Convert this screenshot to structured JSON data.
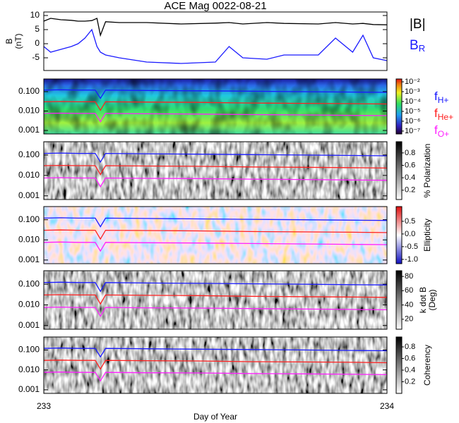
{
  "chart_data": [
    {
      "type": "line",
      "title": "ACE Mag 0022-08-21",
      "ylabel": "B",
      "yunit": "(nT)",
      "xlim": [
        233,
        234
      ],
      "ylim": [
        -9.5,
        11.25
      ],
      "yticks": [
        -5,
        0,
        5,
        10
      ],
      "x": [
        233,
        233.02,
        233.05,
        233.08,
        233.1,
        233.12,
        233.14,
        233.155,
        233.165,
        233.18,
        233.22,
        233.3,
        233.4,
        233.5,
        233.54,
        233.58,
        233.65,
        233.7,
        233.8,
        233.85,
        233.9,
        233.93,
        233.96,
        234
      ],
      "series": [
        {
          "name": "|B|",
          "color": "#000000",
          "values": [
            8,
            9,
            8.5,
            8.3,
            8,
            8,
            8.2,
            9,
            3,
            7.8,
            7.5,
            7.5,
            7,
            7.3,
            7.5,
            7,
            7.5,
            7.2,
            7,
            7.5,
            7,
            7.2,
            6.8,
            6.7
          ]
        },
        {
          "name": "B",
          "subscript": "R",
          "color": "#1a1aff",
          "values": [
            -1,
            -3,
            -2,
            -1,
            0,
            2,
            5,
            -1,
            -3,
            -4,
            -5,
            -6.5,
            -7,
            -6.5,
            -1,
            -5,
            -5.5,
            -4,
            -4,
            2,
            -3,
            3,
            -5,
            -6
          ]
        }
      ]
    },
    {
      "type": "spectrogram",
      "yscale": "log",
      "xlim": [
        233,
        234
      ],
      "ylim": [
        0.00066,
        0.45
      ],
      "yticks": [
        {
          "value": 0.001,
          "label": "0.001"
        },
        {
          "value": 0.01,
          "label": "0.010"
        },
        {
          "value": 0.1,
          "label": "0.100"
        }
      ],
      "colormap": "rainbow",
      "colorbar": {
        "scale": "log",
        "lim": [
          5.1e-08,
          0.0195
        ],
        "ticks": [
          {
            "value": 1e-07,
            "label": "10⁻⁷"
          },
          {
            "value": 1e-06,
            "label": "10⁻⁶"
          },
          {
            "value": 1e-05,
            "label": "10⁻⁵"
          },
          {
            "value": 0.0001,
            "label": "10⁻⁴"
          },
          {
            "value": 0.001,
            "label": "10⁻³"
          },
          {
            "value": 0.01,
            "label": "10⁻²"
          }
        ]
      },
      "x": [
        233,
        233.05,
        233.1,
        233.15,
        233.165,
        233.18,
        233.3,
        233.45,
        233.6,
        233.75,
        233.9,
        234
      ],
      "series": [
        {
          "name": "f",
          "subscript": "H+",
          "color": "#1a1aff",
          "values": [
            0.12,
            0.125,
            0.12,
            0.12,
            0.045,
            0.12,
            0.115,
            0.11,
            0.105,
            0.1,
            0.095,
            0.092
          ]
        },
        {
          "name": "f",
          "subscript": "He+",
          "color": "#ff2020",
          "values": [
            0.03,
            0.031,
            0.03,
            0.03,
            0.011,
            0.03,
            0.029,
            0.028,
            0.026,
            0.025,
            0.024,
            0.023
          ]
        },
        {
          "name": "f",
          "subscript": "O+",
          "color": "#ff20ff",
          "values": [
            0.0075,
            0.0078,
            0.0075,
            0.0075,
            0.0028,
            0.0075,
            0.0072,
            0.007,
            0.0066,
            0.0063,
            0.006,
            0.0058
          ]
        }
      ]
    },
    {
      "type": "spectrogram",
      "yscale": "log",
      "xlim": [
        233,
        234
      ],
      "ylim": [
        0.00066,
        0.45
      ],
      "yticks": [
        {
          "value": 0.001,
          "label": "0.001"
        },
        {
          "value": 0.01,
          "label": "0.010"
        },
        {
          "value": 0.1,
          "label": "0.100"
        }
      ],
      "colormap": "gray",
      "colorbar": {
        "label": "% Polarization",
        "lim": [
          0.05,
          0.98
        ],
        "ticks": [
          0.2,
          0.4,
          0.6,
          0.8
        ]
      },
      "x": [
        233,
        233.05,
        233.1,
        233.15,
        233.165,
        233.18,
        233.3,
        233.45,
        233.6,
        233.75,
        233.9,
        234
      ],
      "series": [
        {
          "color": "#1a1aff",
          "values": [
            0.12,
            0.125,
            0.12,
            0.12,
            0.045,
            0.12,
            0.115,
            0.11,
            0.105,
            0.1,
            0.095,
            0.092
          ]
        },
        {
          "color": "#ff2020",
          "values": [
            0.03,
            0.031,
            0.03,
            0.03,
            0.011,
            0.03,
            0.029,
            0.028,
            0.026,
            0.025,
            0.024,
            0.023
          ]
        },
        {
          "color": "#ff20ff",
          "values": [
            0.0075,
            0.0078,
            0.0075,
            0.0075,
            0.0028,
            0.0075,
            0.0072,
            0.007,
            0.0066,
            0.0063,
            0.006,
            0.0058
          ]
        }
      ]
    },
    {
      "type": "spectrogram",
      "yscale": "log",
      "xlim": [
        233,
        234
      ],
      "ylim": [
        0.00066,
        0.45
      ],
      "yticks": [
        {
          "value": 0.001,
          "label": "0.001"
        },
        {
          "value": 0.01,
          "label": "0.010"
        },
        {
          "value": 0.1,
          "label": "0.100"
        }
      ],
      "colormap": "diverging",
      "colorbar": {
        "label": "Ellipticity",
        "lim": [
          -1.17,
          1.08
        ],
        "ticks": [
          {
            "value": -1,
            "label": "-1.0"
          },
          {
            "value": -0.5,
            "label": "-0.5"
          },
          {
            "value": 0,
            "label": "0.0"
          },
          0.5
        ]
      },
      "x": [
        233,
        233.05,
        233.1,
        233.15,
        233.165,
        233.18,
        233.3,
        233.45,
        233.6,
        233.75,
        233.9,
        234
      ],
      "series": [
        {
          "color": "#1a1aff",
          "values": [
            0.12,
            0.125,
            0.12,
            0.12,
            0.045,
            0.12,
            0.115,
            0.11,
            0.105,
            0.1,
            0.095,
            0.092
          ]
        },
        {
          "color": "#ff2020",
          "values": [
            0.03,
            0.031,
            0.03,
            0.03,
            0.011,
            0.03,
            0.029,
            0.028,
            0.026,
            0.025,
            0.024,
            0.023
          ]
        },
        {
          "color": "#ff20ff",
          "values": [
            0.0075,
            0.0078,
            0.0075,
            0.0075,
            0.0028,
            0.0075,
            0.0072,
            0.007,
            0.0066,
            0.0063,
            0.006,
            0.0058
          ]
        }
      ]
    },
    {
      "type": "spectrogram",
      "yscale": "log",
      "xlim": [
        233,
        234
      ],
      "ylim": [
        0.00066,
        0.45
      ],
      "yticks": [
        {
          "value": 0.001,
          "label": "0.001"
        },
        {
          "value": 0.01,
          "label": "0.010"
        },
        {
          "value": 0.1,
          "label": "0.100"
        }
      ],
      "colormap": "gray",
      "colorbar": {
        "label": "k dot B",
        "unit": "(Deg)",
        "lim": [
          6,
          88
        ],
        "ticks": [
          20,
          40,
          60,
          80
        ]
      },
      "x": [
        233,
        233.05,
        233.1,
        233.15,
        233.165,
        233.18,
        233.3,
        233.45,
        233.6,
        233.75,
        233.9,
        234
      ],
      "series": [
        {
          "color": "#1a1aff",
          "values": [
            0.12,
            0.125,
            0.12,
            0.12,
            0.045,
            0.12,
            0.115,
            0.11,
            0.105,
            0.1,
            0.095,
            0.092
          ]
        },
        {
          "color": "#ff2020",
          "values": [
            0.03,
            0.031,
            0.03,
            0.03,
            0.011,
            0.03,
            0.029,
            0.028,
            0.026,
            0.025,
            0.024,
            0.023
          ]
        },
        {
          "color": "#ff20ff",
          "values": [
            0.0075,
            0.0078,
            0.0075,
            0.0075,
            0.0028,
            0.0075,
            0.0072,
            0.007,
            0.0066,
            0.0063,
            0.006,
            0.0058
          ]
        }
      ]
    },
    {
      "type": "spectrogram",
      "yscale": "log",
      "xlim": [
        233,
        234
      ],
      "ylim": [
        0.00066,
        0.45
      ],
      "yticks": [
        {
          "value": 0.001,
          "label": "0.001"
        },
        {
          "value": 0.01,
          "label": "0.010"
        },
        {
          "value": 0.1,
          "label": "0.100"
        }
      ],
      "xticks": [
        233,
        234
      ],
      "xlabel": "Day of Year",
      "colormap": "gray",
      "colorbar": {
        "label": "Coherency",
        "lim": [
          0.0,
          0.97
        ],
        "ticks": [
          0.2,
          0.4,
          0.6,
          0.8
        ]
      },
      "x": [
        233,
        233.05,
        233.1,
        233.15,
        233.165,
        233.18,
        233.3,
        233.45,
        233.6,
        233.75,
        233.9,
        234
      ],
      "series": [
        {
          "color": "#1a1aff",
          "values": [
            0.12,
            0.125,
            0.12,
            0.12,
            0.045,
            0.12,
            0.115,
            0.11,
            0.105,
            0.1,
            0.095,
            0.092
          ]
        },
        {
          "color": "#ff2020",
          "values": [
            0.03,
            0.031,
            0.03,
            0.03,
            0.011,
            0.03,
            0.029,
            0.028,
            0.026,
            0.025,
            0.024,
            0.023
          ]
        },
        {
          "color": "#ff20ff",
          "values": [
            0.0075,
            0.0078,
            0.0075,
            0.0075,
            0.0028,
            0.0075,
            0.0072,
            0.007,
            0.0066,
            0.0063,
            0.006,
            0.0058
          ]
        }
      ]
    }
  ]
}
